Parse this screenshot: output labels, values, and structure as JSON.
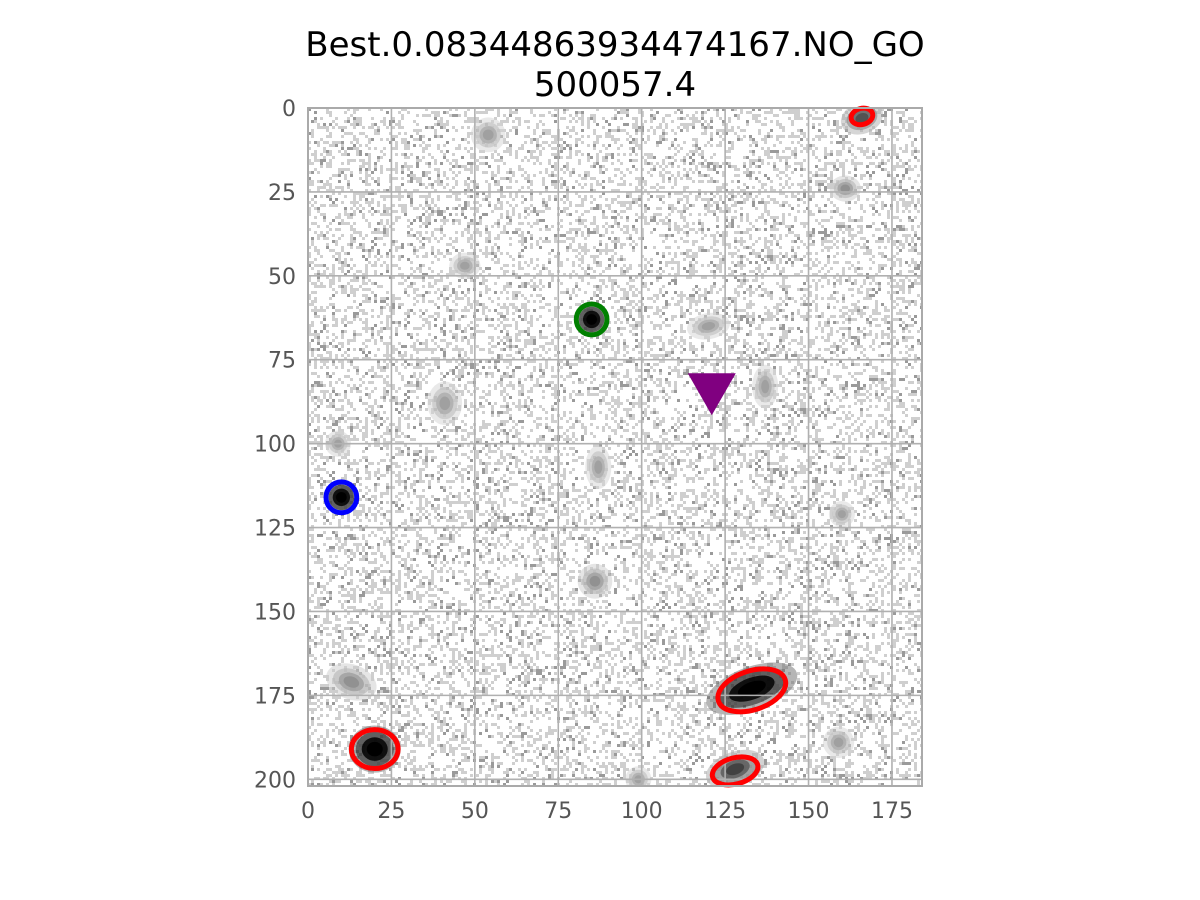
{
  "chart_data": {
    "type": "image",
    "title_lines": [
      "Best.0.08344863934474167.NO_GO",
      "500057.4"
    ],
    "image_size": {
      "width": 184,
      "height": 202
    },
    "xlim": [
      0,
      184
    ],
    "ylim": [
      202,
      0
    ],
    "y_inverted": true,
    "grid": true,
    "xticks": [
      0,
      25,
      50,
      75,
      100,
      125,
      150,
      175
    ],
    "yticks": [
      0,
      25,
      50,
      75,
      100,
      125,
      150,
      175,
      200
    ],
    "colormap": "gray_r",
    "sources": [
      {
        "x": 166,
        "y": 3,
        "rx": 2.5,
        "ry": 1.8,
        "angle": -20,
        "peak": 0.55
      },
      {
        "x": 161,
        "y": 24,
        "rx": 1.8,
        "ry": 1.5,
        "angle": 0,
        "peak": 0.35
      },
      {
        "x": 85,
        "y": 63,
        "rx": 2.0,
        "ry": 2.0,
        "angle": 0,
        "peak": 1.0
      },
      {
        "x": 10,
        "y": 116,
        "rx": 2.0,
        "ry": 2.0,
        "angle": 0,
        "peak": 1.0
      },
      {
        "x": 133,
        "y": 173,
        "rx": 5.5,
        "ry": 2.5,
        "angle": -20,
        "peak": 1.0
      },
      {
        "x": 20,
        "y": 191,
        "rx": 3.0,
        "ry": 2.7,
        "angle": 0,
        "peak": 1.0
      },
      {
        "x": 128,
        "y": 197,
        "rx": 3.5,
        "ry": 2.0,
        "angle": -20,
        "peak": 0.6
      },
      {
        "x": 54,
        "y": 8,
        "rx": 2.0,
        "ry": 2.0,
        "angle": 0,
        "peak": 0.3
      },
      {
        "x": 47,
        "y": 47,
        "rx": 1.8,
        "ry": 1.5,
        "angle": 0,
        "peak": 0.3
      },
      {
        "x": 120,
        "y": 65,
        "rx": 2.5,
        "ry": 1.5,
        "angle": -10,
        "peak": 0.3
      },
      {
        "x": 137,
        "y": 83,
        "rx": 1.5,
        "ry": 2.5,
        "angle": 0,
        "peak": 0.3
      },
      {
        "x": 41,
        "y": 88,
        "rx": 2.0,
        "ry": 2.5,
        "angle": 0,
        "peak": 0.3
      },
      {
        "x": 9,
        "y": 100,
        "rx": 1.5,
        "ry": 1.5,
        "angle": 0,
        "peak": 0.3
      },
      {
        "x": 87,
        "y": 107,
        "rx": 1.5,
        "ry": 2.5,
        "angle": 0,
        "peak": 0.3
      },
      {
        "x": 86,
        "y": 141,
        "rx": 2.0,
        "ry": 2.0,
        "angle": 0,
        "peak": 0.35
      },
      {
        "x": 160,
        "y": 121,
        "rx": 1.5,
        "ry": 1.5,
        "angle": 0,
        "peak": 0.3
      },
      {
        "x": 13,
        "y": 171,
        "rx": 3.0,
        "ry": 2.0,
        "angle": 20,
        "peak": 0.35
      },
      {
        "x": 159,
        "y": 189,
        "rx": 1.8,
        "ry": 1.8,
        "angle": 0,
        "peak": 0.3
      },
      {
        "x": 99,
        "y": 200,
        "rx": 1.5,
        "ry": 1.5,
        "angle": 0,
        "peak": 0.3
      }
    ],
    "markers": [
      {
        "shape": "ellipse",
        "color": "#ff0000",
        "x": 166,
        "y": 2.5,
        "rx": 3.3,
        "ry": 2.4,
        "angle": -15
      },
      {
        "shape": "ellipse",
        "color": "#008000",
        "x": 85,
        "y": 63,
        "rx": 4.6,
        "ry": 4.6,
        "angle": 0
      },
      {
        "shape": "ellipse",
        "color": "#0000ff",
        "x": 10,
        "y": 116,
        "rx": 4.6,
        "ry": 4.6,
        "angle": 0
      },
      {
        "shape": "ellipse",
        "color": "#ff0000",
        "x": 133,
        "y": 173.5,
        "rx": 10.5,
        "ry": 5.8,
        "angle": -18
      },
      {
        "shape": "ellipse",
        "color": "#ff0000",
        "x": 20,
        "y": 191,
        "rx": 7.0,
        "ry": 5.8,
        "angle": 0
      },
      {
        "shape": "ellipse",
        "color": "#ff0000",
        "x": 128,
        "y": 197.5,
        "rx": 7.0,
        "ry": 3.9,
        "angle": -15
      },
      {
        "shape": "triangle-down",
        "color": "#800080",
        "x": 121,
        "y": 85
      }
    ]
  }
}
